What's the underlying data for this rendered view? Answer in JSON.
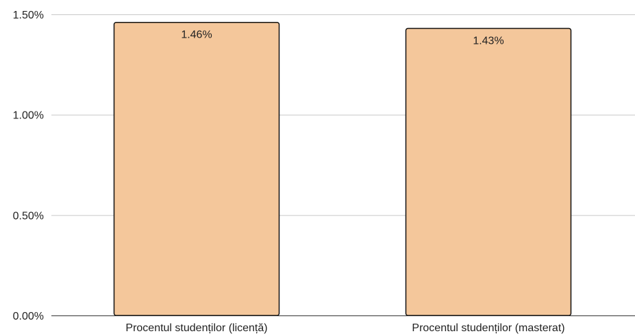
{
  "chart_data": {
    "type": "bar",
    "title": "",
    "xlabel": "",
    "ylabel": "",
    "categories": [
      "Procentul studenților (licență)",
      "Procentul studenților (masterat)"
    ],
    "values": [
      1.46,
      1.43
    ],
    "data_labels": [
      "1.46%",
      "1.43%"
    ],
    "ylim": [
      0,
      1.5
    ],
    "yticks": [
      0,
      0.5,
      1.0,
      1.5
    ],
    "ytick_labels": [
      "0.00%",
      "0.50%",
      "1.00%",
      "1.50%"
    ],
    "grid": true,
    "legend": "none",
    "colors": {
      "bar_fill": "#f4c79b",
      "bar_stroke": "#111111"
    }
  }
}
